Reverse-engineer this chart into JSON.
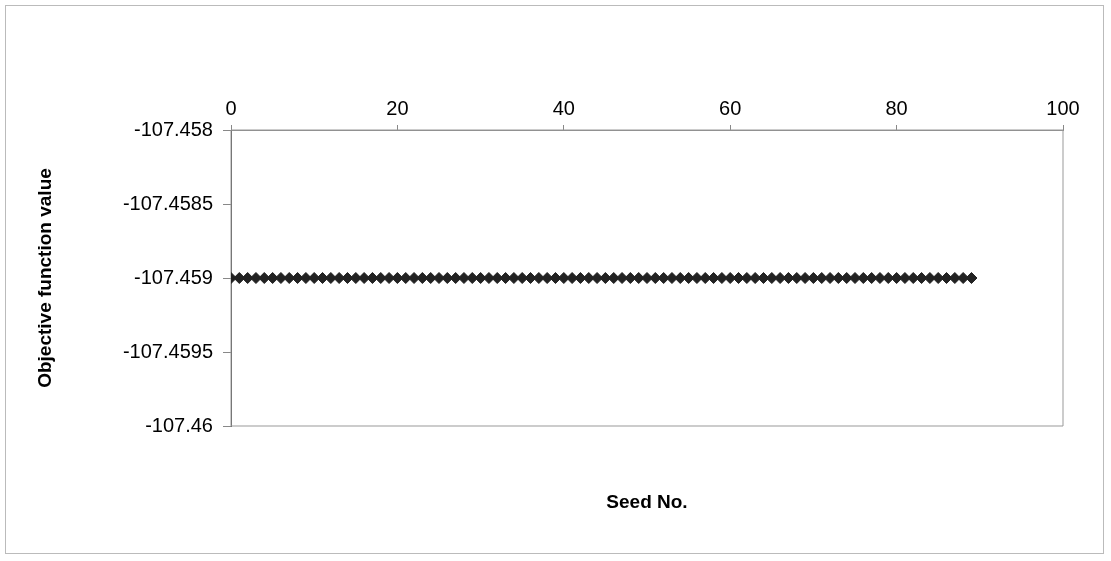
{
  "chart_data": {
    "type": "scatter",
    "xlabel": "Seed No.",
    "ylabel": "Objective function value",
    "x": [
      0,
      1,
      2,
      3,
      4,
      5,
      6,
      7,
      8,
      9,
      10,
      11,
      12,
      13,
      14,
      15,
      16,
      17,
      18,
      19,
      20,
      21,
      22,
      23,
      24,
      25,
      26,
      27,
      28,
      29,
      30,
      31,
      32,
      33,
      34,
      35,
      36,
      37,
      38,
      39,
      40,
      41,
      42,
      43,
      44,
      45,
      46,
      47,
      48,
      49,
      50,
      51,
      52,
      53,
      54,
      55,
      56,
      57,
      58,
      59,
      60,
      61,
      62,
      63,
      64,
      65,
      66,
      67,
      68,
      69,
      70,
      71,
      72,
      73,
      74,
      75,
      76,
      77,
      78,
      79,
      80,
      81,
      82,
      83,
      84,
      85,
      86,
      87,
      88,
      89
    ],
    "series": [
      {
        "color": "#222222",
        "values": [
          -107.459,
          -107.459,
          -107.459,
          -107.459,
          -107.459,
          -107.459,
          -107.459,
          -107.459,
          -107.459,
          -107.459,
          -107.459,
          -107.459,
          -107.459,
          -107.459,
          -107.459,
          -107.459,
          -107.459,
          -107.459,
          -107.459,
          -107.459,
          -107.459,
          -107.459,
          -107.459,
          -107.459,
          -107.459,
          -107.459,
          -107.459,
          -107.459,
          -107.459,
          -107.459,
          -107.459,
          -107.459,
          -107.459,
          -107.459,
          -107.459,
          -107.459,
          -107.459,
          -107.459,
          -107.459,
          -107.459,
          -107.459,
          -107.459,
          -107.459,
          -107.459,
          -107.459,
          -107.459,
          -107.459,
          -107.459,
          -107.459,
          -107.459,
          -107.459,
          -107.459,
          -107.459,
          -107.459,
          -107.459,
          -107.459,
          -107.459,
          -107.459,
          -107.459,
          -107.459,
          -107.459,
          -107.459,
          -107.459,
          -107.459,
          -107.459,
          -107.459,
          -107.459,
          -107.459,
          -107.459,
          -107.459,
          -107.459,
          -107.459,
          -107.459,
          -107.459,
          -107.459,
          -107.459,
          -107.459,
          -107.459,
          -107.459,
          -107.459,
          -107.459,
          -107.459,
          -107.459,
          -107.459,
          -107.459,
          -107.459,
          -107.459,
          -107.459,
          -107.459,
          -107.459
        ]
      }
    ],
    "xlim": [
      0,
      100
    ],
    "xticks": [
      0,
      20,
      40,
      60,
      80,
      100
    ],
    "ylim": [
      -107.46,
      -107.458
    ],
    "yticks": [
      -107.46,
      -107.4595,
      -107.459,
      -107.4585,
      -107.458
    ],
    "marker": "diamond",
    "grid": false,
    "legend": false
  }
}
